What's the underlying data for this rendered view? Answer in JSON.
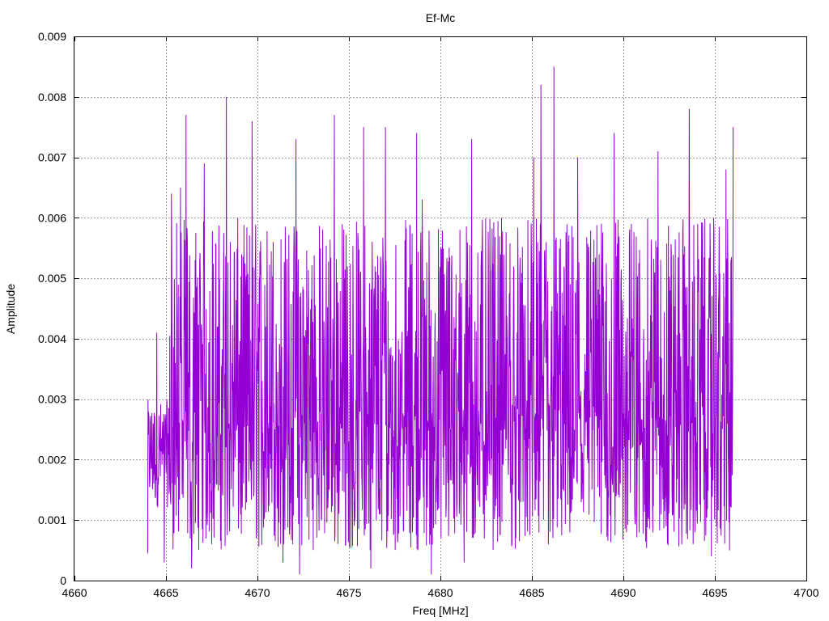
{
  "chart_data": {
    "type": "line",
    "title": "Ef-Mc",
    "xlabel": "Freq [MHz]",
    "ylabel": "Amplitude",
    "xlim": [
      4660,
      4700
    ],
    "ylim": [
      0,
      0.009
    ],
    "xticks": [
      4660,
      4665,
      4670,
      4675,
      4680,
      4685,
      4690,
      4695,
      4700
    ],
    "xtick_labels": [
      "4660",
      "4665",
      "4670",
      "4675",
      "4680",
      "4685",
      "4690",
      "4695",
      "4700"
    ],
    "yticks": [
      0,
      0.001,
      0.002,
      0.003,
      0.004,
      0.005,
      0.006,
      0.007,
      0.008,
      0.009
    ],
    "ytick_labels": [
      "0",
      "0.001",
      "0.002",
      "0.003",
      "0.004",
      "0.005",
      "0.006",
      "0.007",
      "0.008",
      "0.009"
    ],
    "grid": true,
    "series": [
      {
        "color": "#9400d3",
        "x_range": [
          4664.0,
          4696.0
        ],
        "peaks": [
          {
            "x": 4664.0,
            "y": 0.00045
          },
          {
            "x": 4664.3,
            "y": 0.0026
          },
          {
            "x": 4664.5,
            "y": 0.0041
          },
          {
            "x": 4664.9,
            "y": 0.0003
          },
          {
            "x": 4665.3,
            "y": 0.0064
          },
          {
            "x": 4665.8,
            "y": 0.0065
          },
          {
            "x": 4666.1,
            "y": 0.0077
          },
          {
            "x": 4666.4,
            "y": 0.0002
          },
          {
            "x": 4667.1,
            "y": 0.0069
          },
          {
            "x": 4668.3,
            "y": 0.008
          },
          {
            "x": 4669.2,
            "y": 0.0035
          },
          {
            "x": 4669.7,
            "y": 0.0076
          },
          {
            "x": 4671.4,
            "y": 0.0003
          },
          {
            "x": 4672.1,
            "y": 0.0073
          },
          {
            "x": 4672.3,
            "y": 0.0001
          },
          {
            "x": 4674.2,
            "y": 0.0077
          },
          {
            "x": 4674.8,
            "y": 0.0006
          },
          {
            "x": 4675.8,
            "y": 0.0075
          },
          {
            "x": 4676.2,
            "y": 0.0002
          },
          {
            "x": 4677.0,
            "y": 0.0075
          },
          {
            "x": 4678.7,
            "y": 0.0074
          },
          {
            "x": 4679.0,
            "y": 0.0063
          },
          {
            "x": 4679.5,
            "y": 0.0001
          },
          {
            "x": 4681.3,
            "y": 0.0003
          },
          {
            "x": 4681.7,
            "y": 0.0073
          },
          {
            "x": 4685.1,
            "y": 0.007
          },
          {
            "x": 4685.5,
            "y": 0.0082
          },
          {
            "x": 4685.9,
            "y": 0.0006
          },
          {
            "x": 4686.2,
            "y": 0.0085
          },
          {
            "x": 4687.5,
            "y": 0.007
          },
          {
            "x": 4689.5,
            "y": 0.0074
          },
          {
            "x": 4691.9,
            "y": 0.0071
          },
          {
            "x": 4693.6,
            "y": 0.0078
          },
          {
            "x": 4694.8,
            "y": 0.0004
          },
          {
            "x": 4695.6,
            "y": 0.0068
          },
          {
            "x": 4695.8,
            "y": 0.0005
          },
          {
            "x": 4696.0,
            "y": 0.0075
          }
        ],
        "typical_range": [
          0.0005,
          0.006
        ]
      }
    ]
  }
}
